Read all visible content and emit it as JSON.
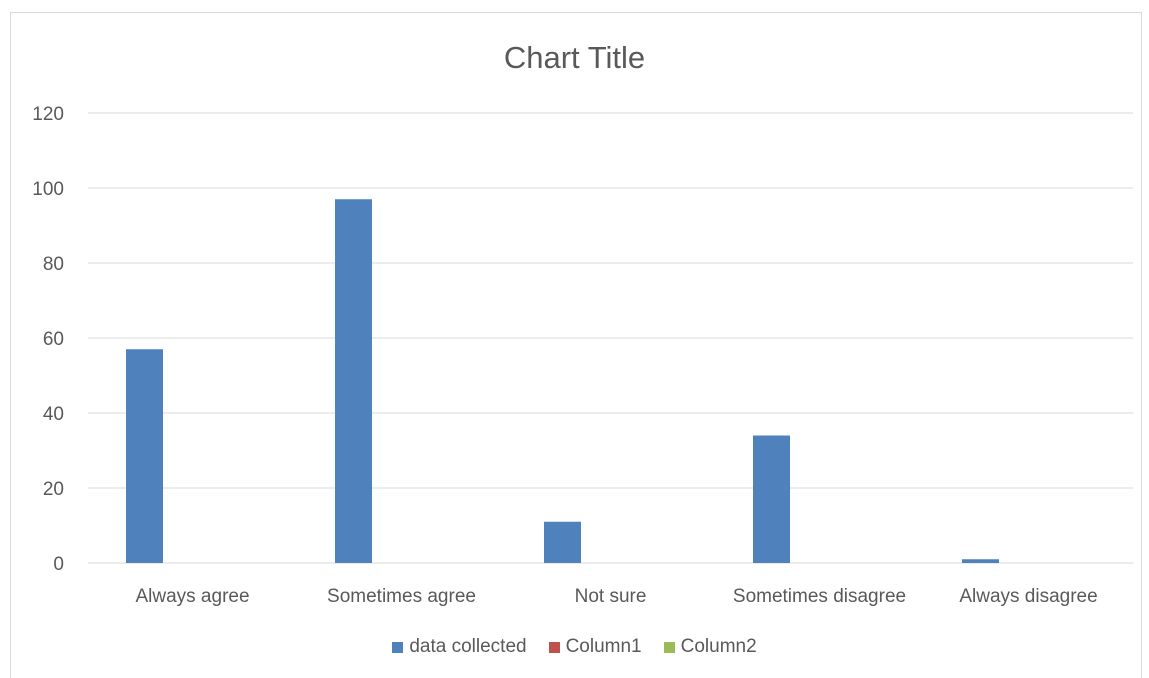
{
  "chart_data": {
    "type": "bar",
    "title": "Chart Title",
    "categories": [
      "Always agree",
      "Sometimes agree",
      "Not sure",
      "Sometimes disagree",
      "Always disagree"
    ],
    "series": [
      {
        "name": "data collected",
        "color": "#4f81bd",
        "values": [
          57,
          97,
          11,
          34,
          1
        ]
      },
      {
        "name": "Column1",
        "color": "#c0504d",
        "values": [
          0,
          0,
          0,
          0,
          0
        ]
      },
      {
        "name": "Column2",
        "color": "#9bbb59",
        "values": [
          0,
          0,
          0,
          0,
          0
        ]
      }
    ],
    "ylim": [
      0,
      120
    ],
    "yticks": [
      0,
      20,
      40,
      60,
      80,
      100,
      120
    ],
    "grid": true,
    "legend_position": "bottom"
  }
}
